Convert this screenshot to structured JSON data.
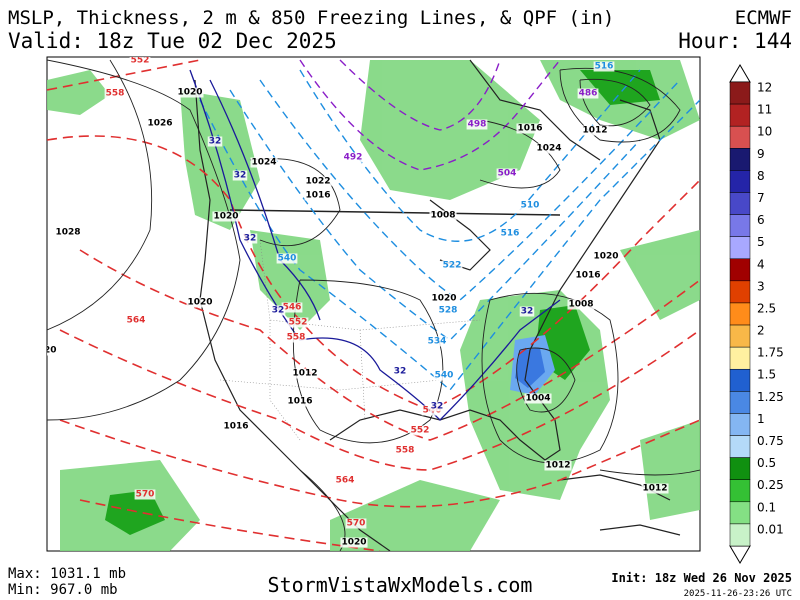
{
  "header": {
    "title": "MSLP, Thickness, 2 m & 850 Freezing Lines, & QPF (in)",
    "valid": "Valid: 18z Tue 02 Dec 2025",
    "model": "ECMWF",
    "hour": "Hour: 144"
  },
  "map": {
    "isobar_labels": [
      "1020",
      "1026",
      "1028",
      "1024",
      "1022",
      "1016",
      "1020",
      "1008",
      "1016",
      "1012",
      "1020",
      "1020",
      "1020",
      "1012",
      "1016",
      "1016",
      "1008",
      "1016",
      "1020",
      "1004",
      "1012",
      "1012",
      "1020",
      "1024"
    ],
    "thickness_labels": [
      "558",
      "552",
      "564",
      "546",
      "552",
      "558",
      "546",
      "552",
      "558",
      "564",
      "570",
      "570",
      "540",
      "528",
      "534",
      "540",
      "522",
      "516",
      "510",
      "516",
      "498",
      "492",
      "504",
      "486"
    ],
    "freezing_line_labels": [
      "32",
      "32",
      "32",
      "32",
      "32",
      "32",
      "32"
    ]
  },
  "colorbar": [
    "12",
    "11",
    "10",
    "9",
    "8",
    "7",
    "6",
    "5",
    "4",
    "3",
    "2.5",
    "2",
    "1.75",
    "1.5",
    "1.25",
    "1",
    "0.75",
    "0.5",
    "0.25",
    "0.1",
    "0.01"
  ],
  "footer": {
    "max": "Max: 1031.1 mb",
    "min": "Min: 967.0 mb",
    "site": "StormVistaWxModels.com",
    "init": "Init: 18z Wed 26 Nov 2025",
    "stamp": "2025-11-26-23:26 UTC"
  }
}
